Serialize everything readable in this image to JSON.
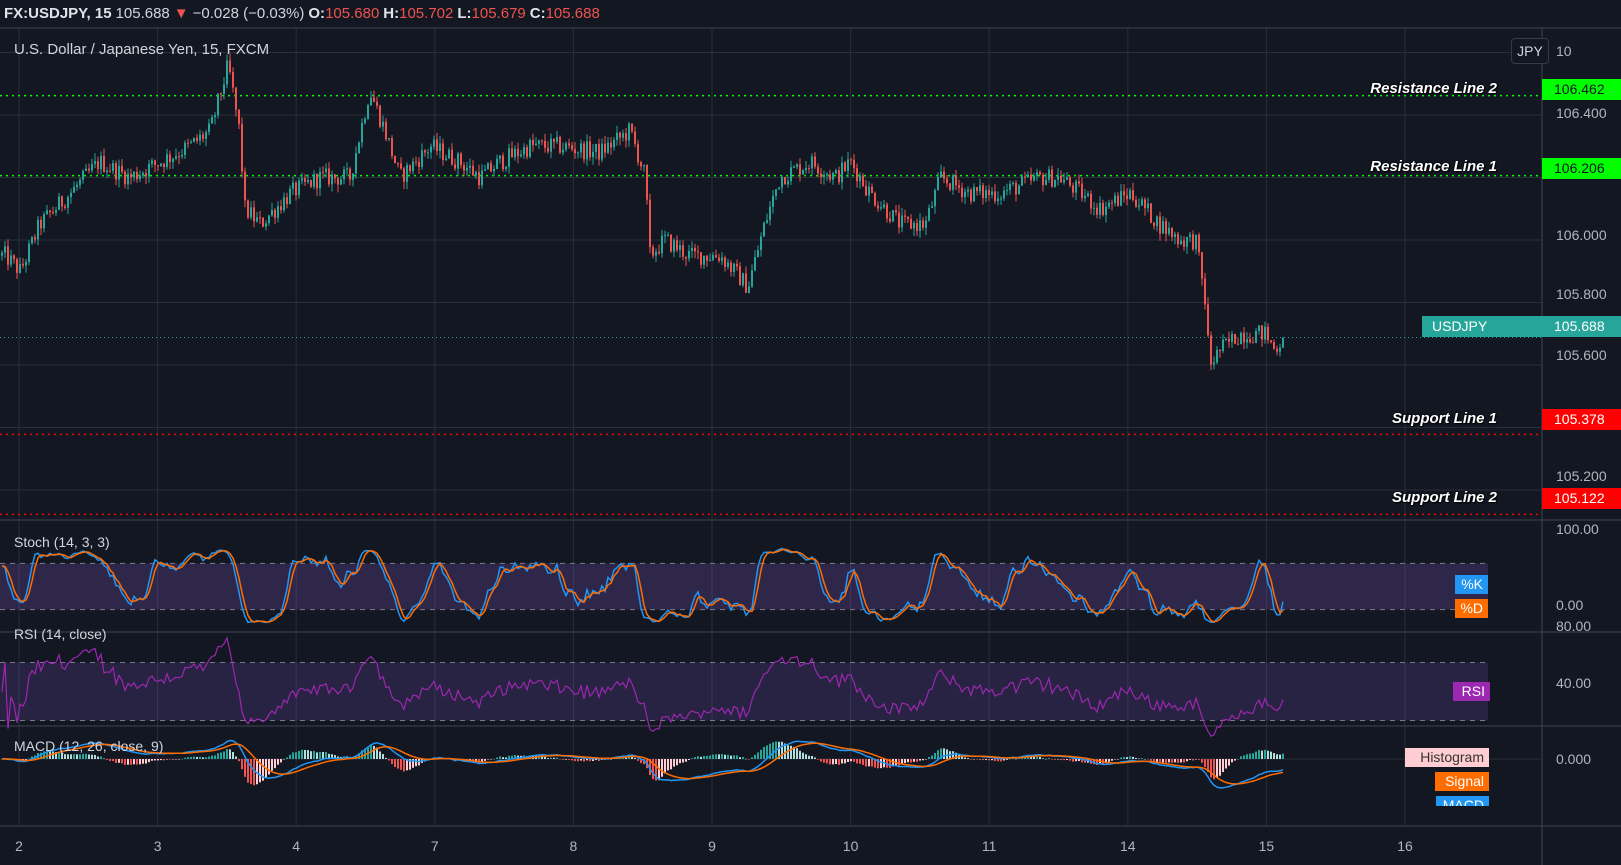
{
  "header": {
    "symbol": "FX:USDJPY, 15",
    "last": "105.688",
    "change": "−0.028 (−0.03%)",
    "o_label": "O:",
    "o": "105.680",
    "h_label": "H:",
    "h": "105.702",
    "l_label": "L:",
    "l": "105.679",
    "c_label": "C:",
    "c": "105.688"
  },
  "main": {
    "title": "U.S. Dollar / Japanese Yen, 15, FXCM",
    "currency_button": "JPY",
    "price_axis": [
      "106.400",
      "106.000",
      "105.800",
      "105.600",
      "105.200"
    ],
    "top_axis_partial": "10",
    "current": {
      "name": "USDJPY",
      "price": "105.688"
    }
  },
  "levels": [
    {
      "name": "Resistance Line 2",
      "price": "106.462",
      "color": "#00ff00"
    },
    {
      "name": "Resistance Line 1",
      "price": "106.206",
      "color": "#00ff00"
    },
    {
      "name": "Support Line 1",
      "price": "105.378",
      "color": "#ff0000"
    },
    {
      "name": "Support Line 2",
      "price": "105.122",
      "color": "#ff0000"
    }
  ],
  "stoch": {
    "title": "Stoch (14, 3, 3)",
    "axis": [
      "100.00",
      "0.00"
    ],
    "k_label": "%K",
    "d_label": "%D"
  },
  "rsi": {
    "title": "RSI (14, close)",
    "axis": [
      "80.00",
      "40.00"
    ],
    "label": "RSI"
  },
  "macd": {
    "title": "MACD (12, 26, close, 9)",
    "axis": [
      "0.000"
    ],
    "histogram_label": "Histogram",
    "signal_label": "Signal",
    "macd_label": "MACD"
  },
  "time_axis": [
    "2",
    "3",
    "4",
    "7",
    "8",
    "9",
    "10",
    "11",
    "14",
    "15",
    "16"
  ],
  "colors": {
    "bg": "#131722",
    "up": "#26a69a",
    "down": "#ef5350",
    "k": "#2196f3",
    "d": "#ff6d00",
    "rsi": "#9c27b0"
  },
  "chart_data": {
    "type": "candlestick",
    "title": "U.S. Dollar / Japanese Yen, 15, FXCM",
    "ylim": [
      105.05,
      106.68
    ],
    "x_units": "trading day index (0 = day 2)",
    "close_path": [
      [
        -0.1,
        105.95
      ],
      [
        0.01,
        105.9
      ],
      [
        0.15,
        106.05
      ],
      [
        0.37,
        106.15
      ],
      [
        0.58,
        106.25
      ],
      [
        0.8,
        106.2
      ],
      [
        1.02,
        106.25
      ],
      [
        1.23,
        106.3
      ],
      [
        1.38,
        106.35
      ],
      [
        1.51,
        106.56
      ],
      [
        1.59,
        106.35
      ],
      [
        1.63,
        106.1
      ],
      [
        1.74,
        106.05
      ],
      [
        1.96,
        106.15
      ],
      [
        2.17,
        106.2
      ],
      [
        2.39,
        106.2
      ],
      [
        2.53,
        106.48
      ],
      [
        2.64,
        106.35
      ],
      [
        2.75,
        106.2
      ],
      [
        2.97,
        106.3
      ],
      [
        3.18,
        106.25
      ],
      [
        3.33,
        106.2
      ],
      [
        3.47,
        106.25
      ],
      [
        3.69,
        106.3
      ],
      [
        3.9,
        106.3
      ],
      [
        4.19,
        106.28
      ],
      [
        4.41,
        106.35
      ],
      [
        4.52,
        106.2
      ],
      [
        4.55,
        105.95
      ],
      [
        4.66,
        106.0
      ],
      [
        4.84,
        105.95
      ],
      [
        5.06,
        105.95
      ],
      [
        5.26,
        105.85
      ],
      [
        5.38,
        106.05
      ],
      [
        5.49,
        106.2
      ],
      [
        5.71,
        106.25
      ],
      [
        5.89,
        106.2
      ],
      [
        6.0,
        106.25
      ],
      [
        6.14,
        106.15
      ],
      [
        6.36,
        106.05
      ],
      [
        6.54,
        106.05
      ],
      [
        6.65,
        106.2
      ],
      [
        6.86,
        106.15
      ],
      [
        7.08,
        106.15
      ],
      [
        7.37,
        106.2
      ],
      [
        7.51,
        106.2
      ],
      [
        7.66,
        106.15
      ],
      [
        7.8,
        106.1
      ],
      [
        8.02,
        106.15
      ],
      [
        8.23,
        106.05
      ],
      [
        8.38,
        106.0
      ],
      [
        8.49,
        106.0
      ],
      [
        8.56,
        105.8
      ],
      [
        8.59,
        105.6
      ],
      [
        8.67,
        105.65
      ],
      [
        8.81,
        105.7
      ],
      [
        8.99,
        105.7
      ],
      [
        9.06,
        105.65
      ],
      [
        9.12,
        105.688
      ]
    ]
  }
}
